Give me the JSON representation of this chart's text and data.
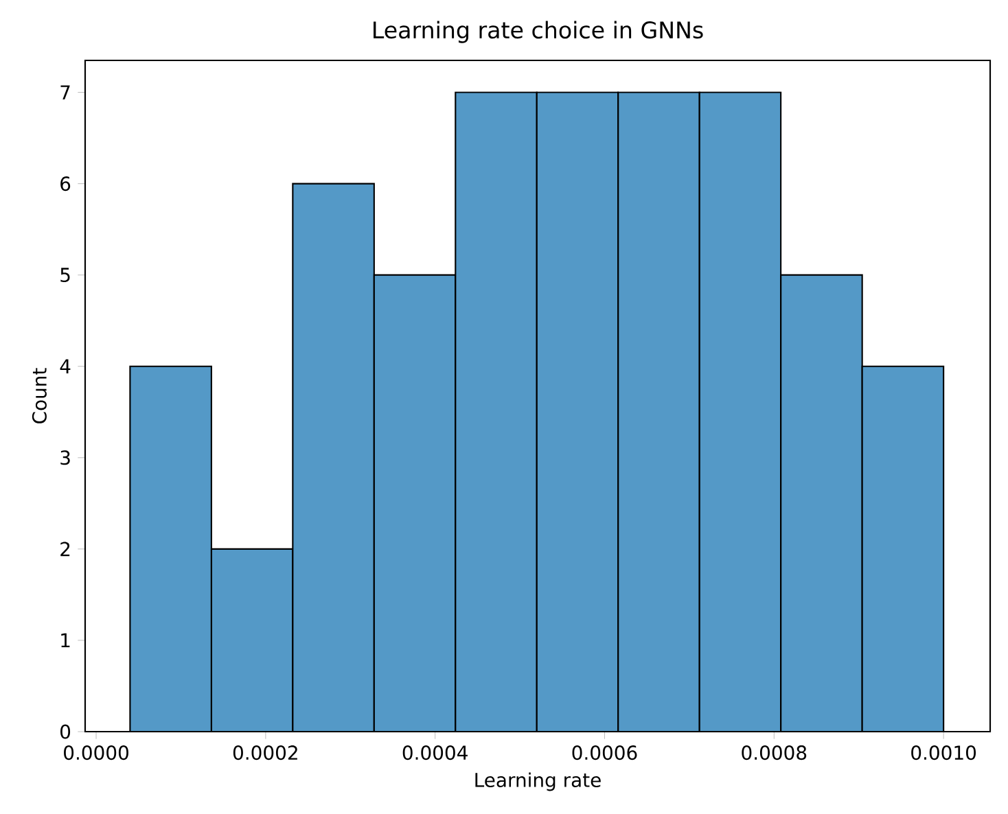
{
  "chart_data": {
    "type": "histogram",
    "title": "Learning rate choice in GNNs",
    "xlabel": "Learning rate",
    "ylabel": "Count",
    "bins": [
      4e-05,
      0.000136,
      0.000232,
      0.000328,
      0.000424,
      0.00052,
      0.000616,
      0.000712,
      0.000808,
      0.000904,
      0.001
    ],
    "values": [
      4,
      2,
      6,
      5,
      7,
      7,
      7,
      7,
      5,
      4
    ],
    "color": "#5499c7",
    "xlim": [
      -1.3e-05,
      0.001055
    ],
    "ylim": [
      0,
      7.35
    ],
    "xticks": [
      {
        "value": 0,
        "label": "0.0000"
      },
      {
        "value": 0.0002,
        "label": "0.0002"
      },
      {
        "value": 0.0004,
        "label": "0.0004"
      },
      {
        "value": 0.0006,
        "label": "0.0006"
      },
      {
        "value": 0.0008,
        "label": "0.0008"
      },
      {
        "value": 0.001,
        "label": "0.0010"
      }
    ],
    "yticks": [
      0,
      1,
      2,
      3,
      4,
      5,
      6,
      7
    ]
  }
}
